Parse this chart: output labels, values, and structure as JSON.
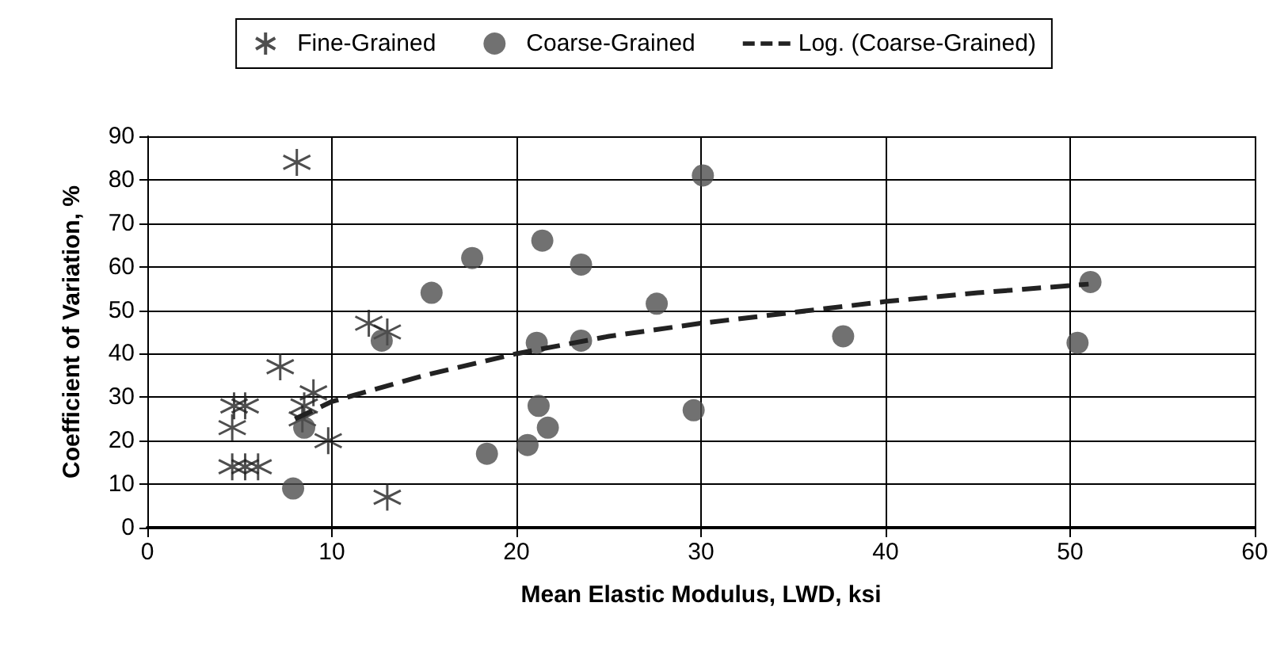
{
  "chart_data": {
    "type": "scatter",
    "xlabel": "Mean Elastic Modulus, LWD, ksi",
    "ylabel": "Coefficient of Variation, %",
    "xlim": [
      0,
      60
    ],
    "xticks": [
      0,
      10,
      20,
      30,
      40,
      50,
      60
    ],
    "ylim": [
      0,
      90
    ],
    "yticks": [
      0,
      10,
      20,
      30,
      40,
      50,
      60,
      70,
      80,
      90
    ],
    "grid": true,
    "legend": "top",
    "series": [
      {
        "name": "Fine-Grained",
        "marker": "cross",
        "color": "#222222",
        "x": [
          8.1,
          4.7,
          5.3,
          4.6,
          7.2,
          9.0,
          8.5,
          8.4,
          4.6,
          5.3,
          6.0,
          9.8,
          12.0,
          13.0,
          13.0
        ],
        "values": [
          84,
          28,
          28,
          23,
          37,
          31,
          28,
          25,
          14,
          14,
          14,
          20,
          47,
          45,
          7
        ]
      },
      {
        "name": "Coarse-Grained",
        "marker": "circle",
        "color": "#4d4d4d",
        "x": [
          7.9,
          8.5,
          12.7,
          15.4,
          17.6,
          18.4,
          20.6,
          21.1,
          21.2,
          21.4,
          21.7,
          23.5,
          23.5,
          27.6,
          29.6,
          30.1,
          37.7,
          50.4,
          51.1
        ],
        "values": [
          9,
          23,
          43,
          54,
          62,
          17,
          19,
          42.5,
          28,
          66,
          23,
          60.5,
          43,
          51.5,
          27,
          81,
          44,
          42.5,
          56.5
        ]
      },
      {
        "name": "Log. (Coarse-Grained)",
        "type": "line",
        "marker": "none",
        "line_style": "dashed",
        "color": "#222222",
        "x": [
          8,
          10,
          15,
          20,
          25,
          30,
          35,
          40,
          45,
          51
        ],
        "values": [
          25,
          29,
          35,
          40,
          44,
          47,
          49.5,
          52,
          54,
          56
        ]
      }
    ]
  }
}
